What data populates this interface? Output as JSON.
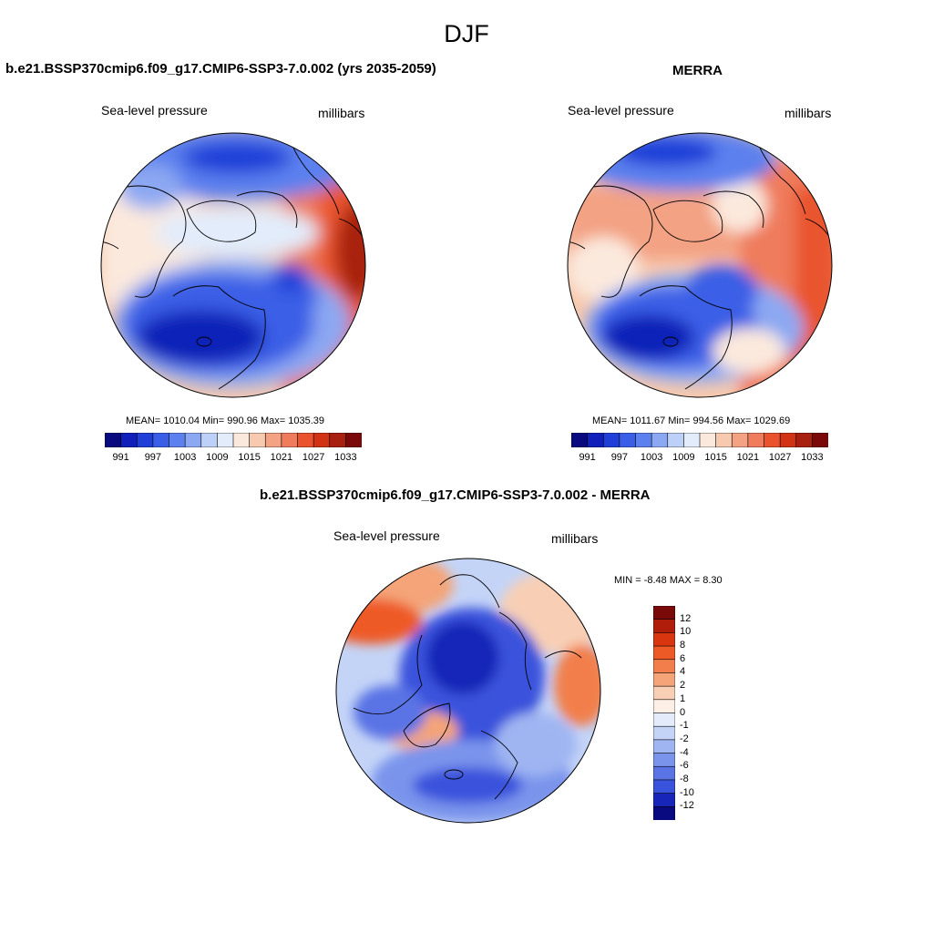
{
  "page": {
    "title": "DJF"
  },
  "panels": [
    {
      "title": "b.e21.BSSP370cmip6.f09_g17.CMIP6-SSP3-7.0.002 (yrs 2035-2059)",
      "left_label": "Sea-level pressure",
      "right_label": "millibars",
      "stats": "MEAN= 1010.04  Min= 990.96  Max= 1035.39",
      "cbar_ticks": [
        "991",
        "997",
        "1003",
        "1009",
        "1015",
        "1021",
        "1027",
        "1033"
      ]
    },
    {
      "title": "MERRA",
      "left_label": "Sea-level pressure",
      "right_label": "millibars",
      "stats": "MEAN= 1011.67  Min= 994.56  Max= 1029.69",
      "cbar_ticks": [
        "991",
        "997",
        "1003",
        "1009",
        "1015",
        "1021",
        "1027",
        "1033"
      ]
    },
    {
      "title": "b.e21.BSSP370cmip6.f09_g17.CMIP6-SSP3-7.0.002 - MERRA",
      "left_label": "Sea-level pressure",
      "right_label": "millibars",
      "stats": "MIN =  -8.48 MAX =   8.30",
      "cbar_ticks": [
        "12",
        "10",
        "8",
        "6",
        "4",
        "2",
        "1",
        "0",
        "-1",
        "-2",
        "-4",
        "-6",
        "-8",
        "-10",
        "-12"
      ]
    }
  ],
  "colors": {
    "pressure_scale": [
      "#0a0a80",
      "#1020b8",
      "#1f3fd8",
      "#3a5ee6",
      "#5c80ee",
      "#8ca8f2",
      "#bcd0f8",
      "#e2ecfb",
      "#fbe9dd",
      "#f7c9ae",
      "#f3a283",
      "#ef7c5c",
      "#e9542f",
      "#d13414",
      "#a82010",
      "#7a0a0a"
    ],
    "diff_scale": [
      "#7a0a0a",
      "#b01e0b",
      "#d9360f",
      "#ee5a25",
      "#f27f4b",
      "#f4a478",
      "#f8cfb5",
      "#fdeee6",
      "#e4ecfb",
      "#c4d4f7",
      "#9fb5f2",
      "#7a94ec",
      "#5a73e5",
      "#3a53dc",
      "#1726b8",
      "#0a0a80"
    ]
  }
}
